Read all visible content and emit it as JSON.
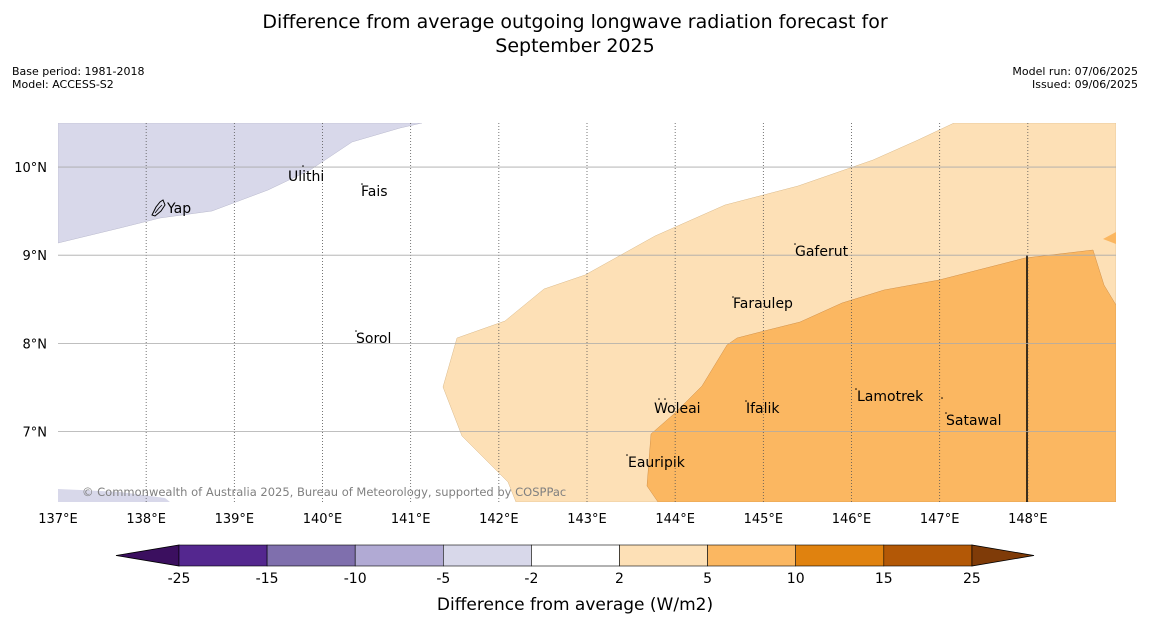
{
  "title_line1": "Difference from average outgoing longwave radiation forecast for",
  "title_line2": "September 2025",
  "meta_left": [
    "Base period: 1981-2018",
    "Model: ACCESS-S2"
  ],
  "meta_right": [
    "Model run: 07/06/2025",
    "Issued: 09/06/2025"
  ],
  "copyright": "© Commonwealth of Australia 2025, Bureau of Meteorology, supported by COSPPac",
  "lon_range": [
    137,
    149
  ],
  "lat_range": [
    6.2,
    10.5
  ],
  "lon_ticks": [
    "137°E",
    "138°E",
    "139°E",
    "140°E",
    "141°E",
    "142°E",
    "143°E",
    "144°E",
    "145°E",
    "146°E",
    "147°E",
    "148°E"
  ],
  "lat_ticks": [
    "7°N",
    "8°N",
    "9°N",
    "10°N"
  ],
  "places": [
    {
      "name": "Ulithi"
    },
    {
      "name": "Fais"
    },
    {
      "name": "Yap"
    },
    {
      "name": "Gaferut"
    },
    {
      "name": "Faraulep"
    },
    {
      "name": "Sorol"
    },
    {
      "name": "Lamotrek"
    },
    {
      "name": "Woleai"
    },
    {
      "name": "Ifalik"
    },
    {
      "name": "Satawal"
    },
    {
      "name": "Eauripik"
    }
  ],
  "colorbar": {
    "label": "Difference from average (W/m2)",
    "ticks": [
      "-25",
      "-15",
      "-10",
      "-5",
      "-2",
      "2",
      "5",
      "10",
      "15",
      "25"
    ],
    "colors": [
      "#3b0f5f",
      "#54278f",
      "#7f6fad",
      "#b1aad4",
      "#d8d8ea",
      "#ffffff",
      "#fde0b6",
      "#fbb761",
      "#e0820f",
      "#b35806",
      "#7f3b08"
    ]
  },
  "colors": {
    "light_orange": "#fde0b6",
    "orange": "#fbb761",
    "light_purple": "#d8d8ea"
  }
}
